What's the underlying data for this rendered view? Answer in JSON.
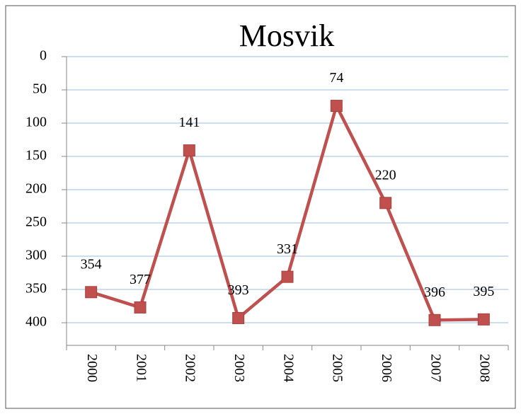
{
  "chart_data": {
    "type": "line",
    "title": "Mosvik",
    "categories": [
      "2000",
      "2001",
      "2002",
      "2003",
      "2004",
      "2005",
      "2006",
      "2007",
      "2008"
    ],
    "series": [
      {
        "name": "Mosvik",
        "color": "#c0504d",
        "values": [
          354,
          377,
          141,
          393,
          331,
          74,
          220,
          396,
          395
        ]
      }
    ],
    "ylim": [
      0,
      434
    ],
    "yticks": [
      0,
      50,
      100,
      150,
      200,
      250,
      300,
      350,
      400
    ],
    "y_inverted": true,
    "grid": true,
    "data_labels": true
  }
}
